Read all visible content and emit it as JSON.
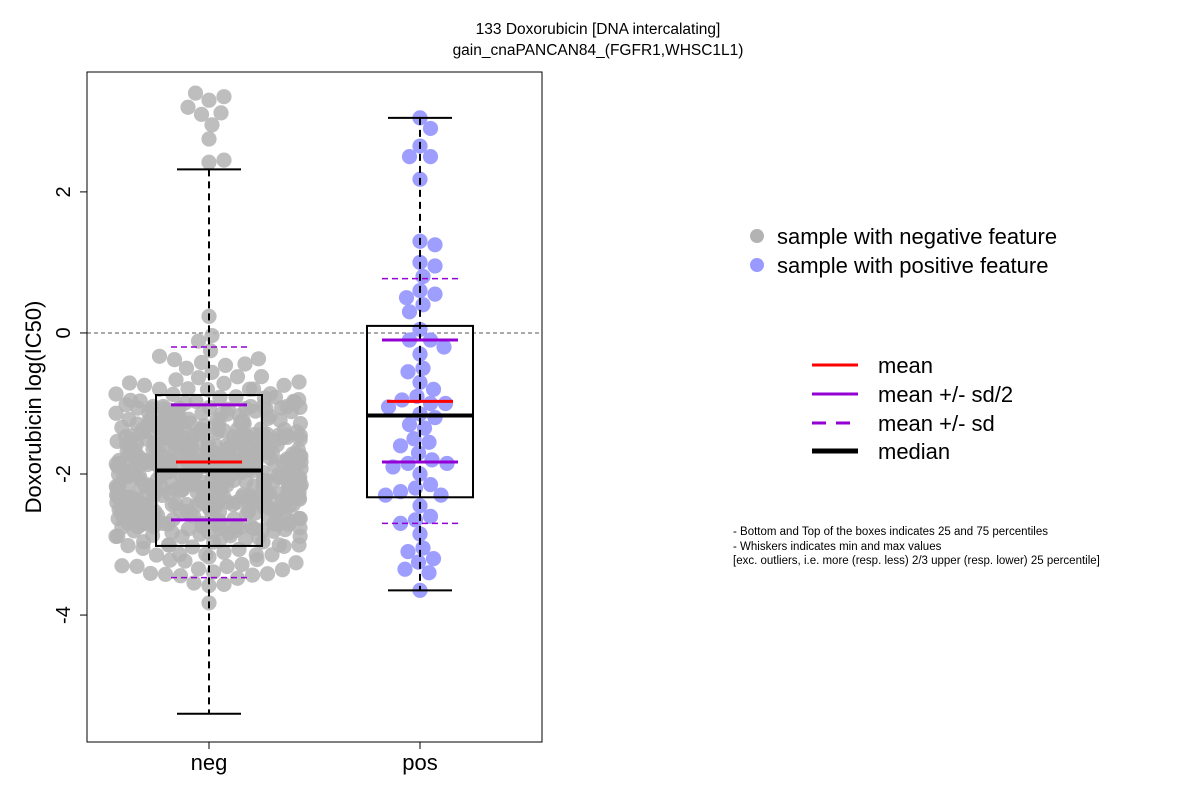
{
  "chart_data": {
    "type": "box",
    "title": "133 Doxorubicin [DNA intercalating]",
    "subtitle": "gain_cnaPANCAN84_(FGFR1,WHSC1L1)",
    "xlabel": "",
    "ylabel": "Doxorubicin log(IC50)",
    "ylim": [
      -5.8,
      3.7
    ],
    "yticks": [
      -4,
      -2,
      0,
      2
    ],
    "reference_line_y": 0,
    "categories": [
      "neg",
      "pos"
    ],
    "groups": [
      {
        "category": "neg",
        "legend_label": "sample with negative feature",
        "point_color": "#b3b3b3",
        "n_points": 560,
        "whisker_low": -5.4,
        "q1": -3.02,
        "median": -1.95,
        "q3": -0.88,
        "whisker_high": 2.32,
        "mean": -1.83,
        "mean_minus_half_sd": -2.65,
        "mean_plus_half_sd": -1.02,
        "mean_minus_sd": -3.47,
        "mean_plus_sd": -0.2,
        "high_points": [
          3.4,
          3.35,
          3.3,
          3.2,
          3.12,
          3.1,
          2.95,
          2.75,
          2.45,
          2.42
        ]
      },
      {
        "category": "pos",
        "legend_label": "sample with positive feature",
        "point_color": "#9999ff",
        "values": [
          3.05,
          2.9,
          2.65,
          2.5,
          2.5,
          2.18,
          1.3,
          1.25,
          1.0,
          0.95,
          0.8,
          0.6,
          0.55,
          0.5,
          0.4,
          0.3,
          0.05,
          -0.1,
          -0.1,
          -0.2,
          -0.3,
          -0.5,
          -0.55,
          -0.7,
          -0.8,
          -0.9,
          -0.95,
          -1.0,
          -1.0,
          -1.05,
          -1.15,
          -1.2,
          -1.3,
          -1.35,
          -1.5,
          -1.55,
          -1.6,
          -1.7,
          -1.8,
          -1.85,
          -1.85,
          -1.9,
          -2.0,
          -2.15,
          -2.2,
          -2.25,
          -2.3,
          -2.3,
          -2.45,
          -2.6,
          -2.65,
          -2.7,
          -2.85,
          -3.05,
          -3.1,
          -3.2,
          -3.25,
          -3.35,
          -3.4,
          -3.65
        ],
        "whisker_low": -3.65,
        "q1": -2.33,
        "median": -1.17,
        "q3": 0.1,
        "whisker_high": 3.05,
        "mean": -0.97,
        "mean_minus_half_sd": -1.83,
        "mean_plus_half_sd": -0.1,
        "mean_minus_sd": -2.7,
        "mean_plus_sd": 0.77
      }
    ],
    "line_legend": [
      {
        "label": "mean",
        "color": "#ff0000",
        "style": "solid"
      },
      {
        "label": "mean +/- sd/2",
        "color": "#9400d3",
        "style": "solid"
      },
      {
        "label": "mean +/- sd",
        "color": "#9400d3",
        "style": "dashed"
      },
      {
        "label": "median",
        "color": "#000000",
        "style": "solid-thick"
      }
    ],
    "notes": [
      "- Bottom and Top of the boxes indicates 25 and 75 percentiles",
      "- Whiskers indicates min and max values",
      "[exc. outliers, i.e. more (resp. less) 2/3 upper (resp. lower) 25 percentile]"
    ]
  }
}
